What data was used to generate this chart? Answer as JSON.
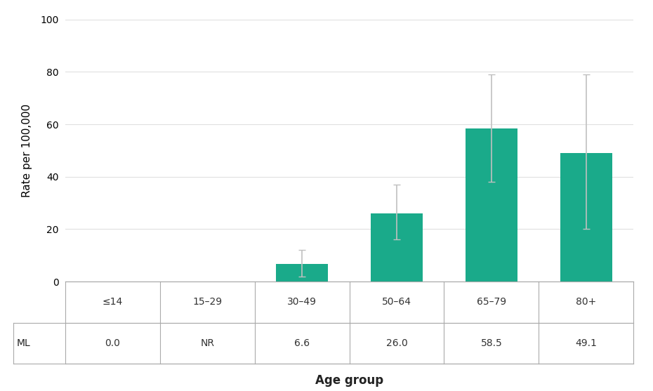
{
  "categories": [
    "≤14",
    "15–29",
    "30–49",
    "50–64",
    "65–79",
    "80+"
  ],
  "values": [
    0.0,
    0.0,
    6.6,
    26.0,
    58.5,
    49.1
  ],
  "has_bar": [
    false,
    false,
    true,
    true,
    true,
    true
  ],
  "error_up": [
    0.0,
    0.0,
    5.4,
    11.0,
    20.5,
    30.0
  ],
  "error_down": [
    0.0,
    0.0,
    4.6,
    10.0,
    20.5,
    29.1
  ],
  "bar_color": "#1aaa8a",
  "error_color": "#c0c0c0",
  "ylabel": "Rate per 100,000",
  "xlabel": "Age group",
  "ylim": [
    0,
    100
  ],
  "yticks": [
    0,
    20,
    40,
    60,
    80,
    100
  ],
  "table_row2_label": "ML",
  "table_row2_values": [
    "0.0",
    "NR",
    "6.6",
    "26.0",
    "58.5",
    "49.1"
  ],
  "background_color": "#ffffff",
  "grid_color": "#e0e0e0"
}
